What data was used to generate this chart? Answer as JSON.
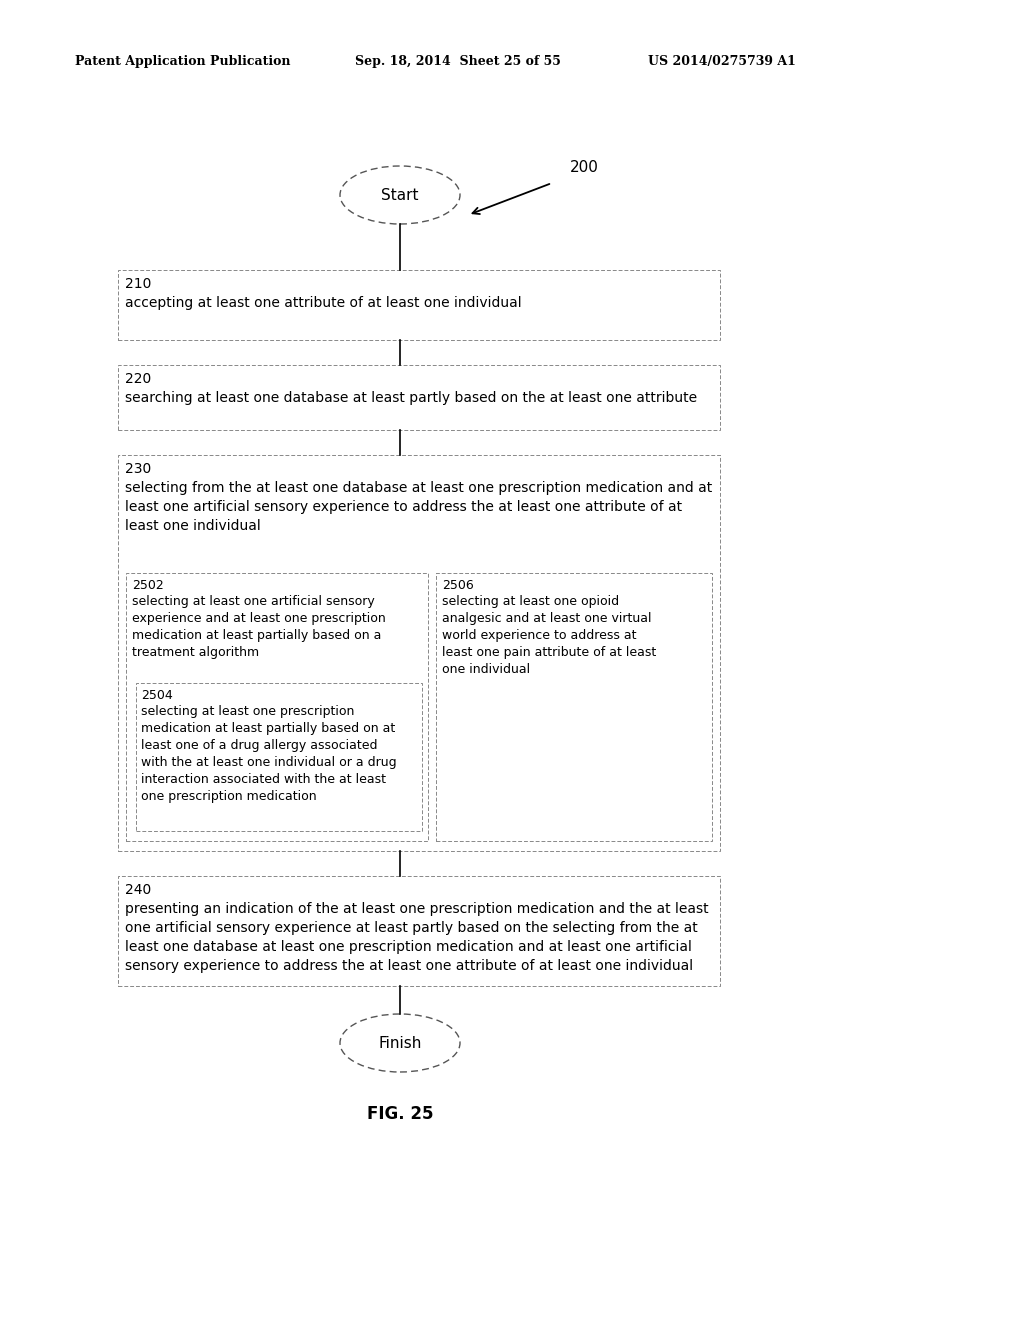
{
  "header_left": "Patent Application Publication",
  "header_mid": "Sep. 18, 2014  Sheet 25 of 55",
  "header_right": "US 2014/0275739 A1",
  "fig_label": "FIG. 25",
  "diagram_label": "200",
  "start_label": "Start",
  "finish_label": "Finish",
  "box210_id": "210",
  "box210_text": "accepting at least one attribute of at least one individual",
  "box220_id": "220",
  "box220_text": "searching at least one database at least partly based on the at least one attribute",
  "box230_id": "230",
  "box230_text": "selecting from the at least one database at least one prescription medication and at\nleast one artificial sensory experience to address the at least one attribute of at\nleast one individual",
  "box2502_id": "2502",
  "box2502_text": "selecting at least one artificial sensory\nexperience and at least one prescription\nmedication at least partially based on a\ntreatment algorithm",
  "box2504_id": "2504",
  "box2504_text": "selecting at least one prescription\nmedication at least partially based on at\nleast one of a drug allergy associated\nwith the at least one individual or a drug\ninteraction associated with the at least\none prescription medication",
  "box2506_id": "2506",
  "box2506_text": "selecting at least one opioid\nanalgesic and at least one virtual\nworld experience to address at\nleast one pain attribute of at least\none individual",
  "box240_id": "240",
  "box240_text": "presenting an indication of the at least one prescription medication and the at least\none artificial sensory experience at least partly based on the selecting from the at\nleast one database at least one prescription medication and at least one artificial\nsensory experience to address the at least one attribute of at least one individual",
  "bg_color": "#ffffff",
  "text_color": "#000000"
}
